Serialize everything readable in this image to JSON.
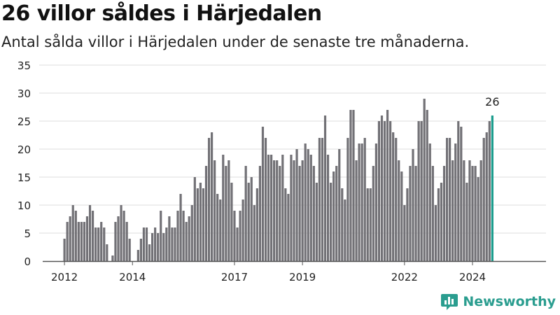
{
  "header": {
    "title": "26 villor såldes i Härjedalen",
    "subtitle": "Antal sålda villor i Härjedalen under de senaste tre månaderna."
  },
  "brand": {
    "name": "Newsworthy",
    "icon": "bar-chart-logo-icon",
    "color": "#2a9d8f"
  },
  "colors": {
    "bar": "#727176",
    "highlight": "#1a9c8c",
    "grid": "#dddddd",
    "axis": "#555555",
    "text": "#222222"
  },
  "chart_data": {
    "type": "bar",
    "xlabel": "",
    "ylabel": "",
    "ylim": [
      0,
      35
    ],
    "yticks": [
      0,
      5,
      10,
      15,
      20,
      25,
      30,
      35
    ],
    "grid": true,
    "x_tick_labels": [
      "2012",
      "2014",
      "2017",
      "2019",
      "2022",
      "2024"
    ],
    "x_tick_index": [
      0,
      24,
      60,
      84,
      120,
      144
    ],
    "highlight_label": "26",
    "values": [
      4,
      7,
      8,
      10,
      9,
      7,
      7,
      7,
      8,
      10,
      9,
      6,
      6,
      7,
      6,
      3,
      0,
      1,
      7,
      8,
      10,
      9,
      7,
      4,
      0,
      0,
      2,
      4,
      6,
      6,
      3,
      5,
      6,
      5,
      9,
      5,
      6,
      8,
      6,
      6,
      9,
      12,
      9,
      7,
      8,
      10,
      15,
      13,
      14,
      13,
      17,
      22,
      23,
      18,
      12,
      11,
      19,
      17,
      18,
      14,
      9,
      6,
      9,
      11,
      17,
      14,
      15,
      10,
      13,
      17,
      24,
      22,
      19,
      19,
      18,
      18,
      17,
      19,
      13,
      12,
      19,
      18,
      20,
      17,
      18,
      21,
      20,
      19,
      17,
      14,
      22,
      22,
      26,
      19,
      14,
      16,
      17,
      20,
      13,
      11,
      22,
      27,
      27,
      18,
      21,
      21,
      22,
      13,
      13,
      17,
      21,
      25,
      26,
      25,
      27,
      25,
      23,
      22,
      18,
      16,
      10,
      13,
      17,
      20,
      17,
      25,
      25,
      29,
      27,
      21,
      17,
      10,
      13,
      14,
      17,
      22,
      22,
      18,
      21,
      25,
      24,
      18,
      14,
      18,
      17,
      17,
      15,
      18,
      22,
      23,
      25,
      26
    ]
  }
}
